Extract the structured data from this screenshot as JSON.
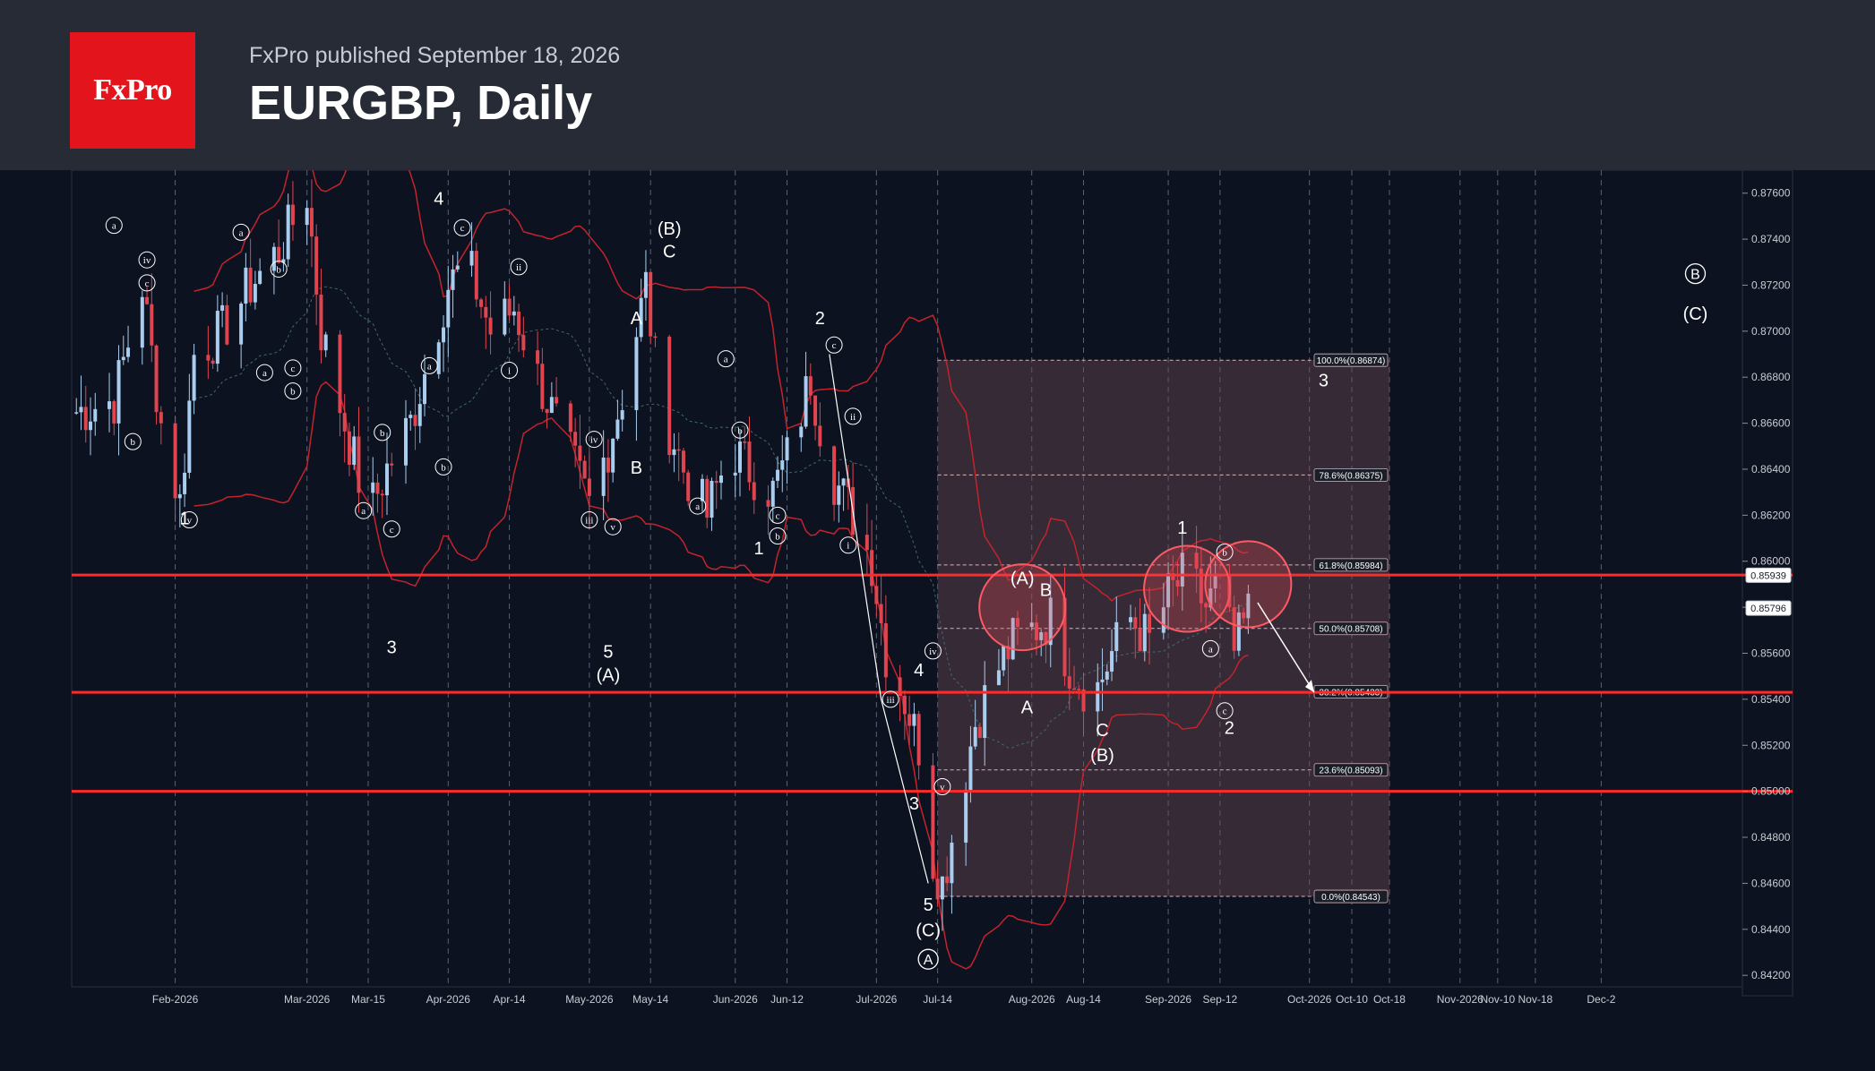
{
  "header": {
    "logo_text": "FxPro",
    "published": "FxPro published September 18, 2026",
    "title": "EURGBP, Daily"
  },
  "colors": {
    "background": "#0c1220",
    "header": "#262b36",
    "brand": "#e3141b",
    "bull_candle": "#a9cdee",
    "bear_candle": "#e0454f",
    "band": "#c4232b",
    "level_line": "#ff2b2b",
    "fib_zone": "#6b4a55"
  },
  "chart_data": {
    "type": "candlestick",
    "symbol": "EURGBP",
    "timeframe": "Daily",
    "ylim": [
      0.8415,
      0.877
    ],
    "y_ticks": [
      "0.84200",
      "0.84400",
      "0.84600",
      "0.84800",
      "0.85000",
      "0.85200",
      "0.85400",
      "0.85600",
      "0.85800",
      "0.86000",
      "0.86200",
      "0.86400",
      "0.86600",
      "0.86800",
      "0.87000",
      "0.87200",
      "0.87400",
      "0.87600"
    ],
    "x_ticks": [
      {
        "label": "Feb-2026",
        "x": "2026-02-02"
      },
      {
        "label": "Mar-2026",
        "x": "2026-03-02"
      },
      {
        "label": "Mar-15",
        "x": "2026-03-15"
      },
      {
        "label": "Apr-2026",
        "x": "2026-04-01"
      },
      {
        "label": "Apr-14",
        "x": "2026-04-14"
      },
      {
        "label": "May-2026",
        "x": "2026-05-01"
      },
      {
        "label": "May-14",
        "x": "2026-05-14"
      },
      {
        "label": "Jun-2026",
        "x": "2026-06-01"
      },
      {
        "label": "Jun-12",
        "x": "2026-06-12"
      },
      {
        "label": "Jul-2026",
        "x": "2026-07-01"
      },
      {
        "label": "Jul-14",
        "x": "2026-07-14"
      },
      {
        "label": "Aug-2026",
        "x": "2026-08-03"
      },
      {
        "label": "Aug-14",
        "x": "2026-08-14"
      },
      {
        "label": "Sep-2026",
        "x": "2026-09-01"
      },
      {
        "label": "Sep-12",
        "x": "2026-09-12"
      },
      {
        "label": "Oct-2026",
        "x": "2026-10-01"
      },
      {
        "label": "Oct-10",
        "x": "2026-10-10"
      },
      {
        "label": "Oct-18",
        "x": "2026-10-18"
      },
      {
        "label": "Nov-2026",
        "x": "2026-11-02"
      },
      {
        "label": "Nov-10",
        "x": "2026-11-10"
      },
      {
        "label": "Nov-18",
        "x": "2026-11-18"
      },
      {
        "label": "Dec-2",
        "x": "2026-12-02"
      }
    ],
    "close_path": [
      [
        "2026-01-12",
        0.8665
      ],
      [
        "2026-01-20",
        0.867
      ],
      [
        "2026-01-26",
        0.872
      ],
      [
        "2026-01-30",
        0.866
      ],
      [
        "2026-02-03",
        0.8625
      ],
      [
        "2026-02-06",
        0.869
      ],
      [
        "2026-02-12",
        0.87
      ],
      [
        "2026-02-18",
        0.872
      ],
      [
        "2026-02-24",
        0.8735
      ],
      [
        "2026-03-02",
        0.876
      ],
      [
        "2026-03-05",
        0.87
      ],
      [
        "2026-03-10",
        0.866
      ],
      [
        "2026-03-15",
        0.862
      ],
      [
        "2026-03-19",
        0.864
      ],
      [
        "2026-03-24",
        0.866
      ],
      [
        "2026-03-28",
        0.869
      ],
      [
        "2026-04-01",
        0.872
      ],
      [
        "2026-04-05",
        0.873
      ],
      [
        "2026-04-10",
        0.87
      ],
      [
        "2026-04-15",
        0.871
      ],
      [
        "2026-04-20",
        0.868
      ],
      [
        "2026-04-24",
        0.866
      ],
      [
        "2026-04-28",
        0.864
      ],
      [
        "2026-05-01",
        0.8625
      ],
      [
        "2026-05-05",
        0.865
      ],
      [
        "2026-05-09",
        0.868
      ],
      [
        "2026-05-13",
        0.872
      ],
      [
        "2026-05-16",
        0.867
      ],
      [
        "2026-05-21",
        0.864
      ],
      [
        "2026-05-26",
        0.862
      ],
      [
        "2026-05-31",
        0.865
      ],
      [
        "2026-06-04",
        0.864
      ],
      [
        "2026-06-09",
        0.863
      ],
      [
        "2026-06-13",
        0.865
      ],
      [
        "2026-06-17",
        0.868
      ],
      [
        "2026-06-21",
        0.864
      ],
      [
        "2026-06-26",
        0.862
      ],
      [
        "2026-06-30",
        0.86
      ],
      [
        "2026-07-03",
        0.856
      ],
      [
        "2026-07-07",
        0.854
      ],
      [
        "2026-07-10",
        0.852
      ],
      [
        "2026-07-13",
        0.847
      ],
      [
        "2026-07-15",
        0.846
      ],
      [
        "2026-07-18",
        0.849
      ],
      [
        "2026-07-22",
        0.853
      ],
      [
        "2026-07-26",
        0.855
      ],
      [
        "2026-07-30",
        0.8565
      ],
      [
        "2026-08-03",
        0.857
      ],
      [
        "2026-08-07",
        0.8575
      ],
      [
        "2026-08-11",
        0.8555
      ],
      [
        "2026-08-16",
        0.854
      ],
      [
        "2026-08-20",
        0.856
      ],
      [
        "2026-08-24",
        0.8575
      ],
      [
        "2026-08-28",
        0.8565
      ],
      [
        "2026-09-01",
        0.8585
      ],
      [
        "2026-09-05",
        0.8595
      ],
      [
        "2026-09-09",
        0.858
      ],
      [
        "2026-09-12",
        0.859
      ],
      [
        "2026-09-15",
        0.856
      ],
      [
        "2026-09-18",
        0.8578
      ]
    ],
    "horizontal_levels": [
      0.8594,
      0.8543,
      0.85
    ],
    "price_tags": [
      "0.85939",
      "0.85796"
    ],
    "fibonacci": {
      "x_start": "2026-07-14",
      "x_end": "2026-10-18",
      "levels": [
        {
          "label": "100.0%(0.86874)",
          "value": 0.86874
        },
        {
          "label": "78.6%(0.86375)",
          "value": 0.86375
        },
        {
          "label": "61.8%(0.85984)",
          "value": 0.85984
        },
        {
          "label": "50.0%(0.85708)",
          "value": 0.85708
        },
        {
          "label": "38.2%(0.85433)",
          "value": 0.85433
        },
        {
          "label": "23.6%(0.85093)",
          "value": 0.85093
        },
        {
          "label": "0.0%(0.84543)",
          "value": 0.84543
        }
      ]
    },
    "wave_labels": [
      {
        "text": "1",
        "x": "2026-02-04",
        "y": 0.8616
      },
      {
        "text": "3",
        "x": "2026-03-20",
        "y": 0.856
      },
      {
        "text": "4",
        "x": "2026-03-30",
        "y": 0.8755
      },
      {
        "text": "5",
        "x": "2026-05-05",
        "y": 0.8558
      },
      {
        "text": "(A)",
        "x": "2026-05-05",
        "y": 0.8548
      },
      {
        "text": "(B)",
        "x": "2026-05-18",
        "y": 0.8742
      },
      {
        "text": "C",
        "x": "2026-05-18",
        "y": 0.8732
      },
      {
        "text": "A",
        "x": "2026-05-11",
        "y": 0.8703
      },
      {
        "text": "B",
        "x": "2026-05-11",
        "y": 0.8638
      },
      {
        "text": "1",
        "x": "2026-06-06",
        "y": 0.8603
      },
      {
        "text": "2",
        "x": "2026-06-19",
        "y": 0.8703
      },
      {
        "text": "4",
        "x": "2026-07-10",
        "y": 0.855
      },
      {
        "text": "3",
        "x": "2026-07-09",
        "y": 0.8492
      },
      {
        "text": "5",
        "x": "2026-07-12",
        "y": 0.8448
      },
      {
        "text": "(C)",
        "x": "2026-07-12",
        "y": 0.8437
      },
      {
        "text": "A",
        "x": "2026-08-02",
        "y": 0.8534
      },
      {
        "text": "(A)",
        "x": "2026-08-01",
        "y": 0.859
      },
      {
        "text": "B",
        "x": "2026-08-06",
        "y": 0.8585
      },
      {
        "text": "C",
        "x": "2026-08-18",
        "y": 0.8524
      },
      {
        "text": "(B)",
        "x": "2026-08-18",
        "y": 0.8513
      },
      {
        "text": "1",
        "x": "2026-09-04",
        "y": 0.8612
      },
      {
        "text": "2",
        "x": "2026-09-14",
        "y": 0.8525
      },
      {
        "text": "3",
        "x": "2026-10-04",
        "y": 0.8676
      }
    ],
    "circled_labels": [
      {
        "text": "a",
        "x": "2026-01-20",
        "y": 0.8746
      },
      {
        "text": "iv",
        "x": "2026-01-27",
        "y": 0.8731
      },
      {
        "text": "c",
        "x": "2026-01-27",
        "y": 0.8721
      },
      {
        "text": "b",
        "x": "2026-01-24",
        "y": 0.8652
      },
      {
        "text": "v",
        "x": "2026-02-05",
        "y": 0.8618
      },
      {
        "text": "a",
        "x": "2026-02-16",
        "y": 0.8743
      },
      {
        "text": "b",
        "x": "2026-02-24",
        "y": 0.8727
      },
      {
        "text": "a",
        "x": "2026-02-21",
        "y": 0.8682
      },
      {
        "text": "c",
        "x": "2026-02-27",
        "y": 0.8684
      },
      {
        "text": "b",
        "x": "2026-02-27",
        "y": 0.8674
      },
      {
        "text": "b",
        "x": "2026-03-18",
        "y": 0.8656
      },
      {
        "text": "a",
        "x": "2026-03-14",
        "y": 0.8622
      },
      {
        "text": "c",
        "x": "2026-03-20",
        "y": 0.8614
      },
      {
        "text": "a",
        "x": "2026-03-28",
        "y": 0.8685
      },
      {
        "text": "b",
        "x": "2026-03-31",
        "y": 0.8641
      },
      {
        "text": "c",
        "x": "2026-04-04",
        "y": 0.8745
      },
      {
        "text": "ii",
        "x": "2026-04-16",
        "y": 0.8728
      },
      {
        "text": "i",
        "x": "2026-04-14",
        "y": 0.8683
      },
      {
        "text": "iv",
        "x": "2026-05-02",
        "y": 0.8653
      },
      {
        "text": "iii",
        "x": "2026-05-01",
        "y": 0.8618
      },
      {
        "text": "v",
        "x": "2026-05-06",
        "y": 0.8615
      },
      {
        "text": "a",
        "x": "2026-05-30",
        "y": 0.8688
      },
      {
        "text": "b",
        "x": "2026-06-02",
        "y": 0.8657
      },
      {
        "text": "a",
        "x": "2026-05-24",
        "y": 0.8624
      },
      {
        "text": "c",
        "x": "2026-06-10",
        "y": 0.862
      },
      {
        "text": "b",
        "x": "2026-06-10",
        "y": 0.8611
      },
      {
        "text": "c",
        "x": "2026-06-22",
        "y": 0.8694
      },
      {
        "text": "ii",
        "x": "2026-06-26",
        "y": 0.8663
      },
      {
        "text": "i",
        "x": "2026-06-25",
        "y": 0.8607
      },
      {
        "text": "iv",
        "x": "2026-07-13",
        "y": 0.8561
      },
      {
        "text": "iii",
        "x": "2026-07-04",
        "y": 0.854
      },
      {
        "text": "v",
        "x": "2026-07-15",
        "y": 0.8502
      },
      {
        "text": "b",
        "x": "2026-09-13",
        "y": 0.8604
      },
      {
        "text": "a",
        "x": "2026-09-10",
        "y": 0.8562
      },
      {
        "text": "c",
        "x": "2026-09-13",
        "y": 0.8535
      }
    ],
    "double_circled_labels": [
      {
        "text": "A",
        "x": "2026-07-12",
        "y": 0.8427
      },
      {
        "text": "B",
        "x": "2026-12-22",
        "y": 0.8725
      }
    ],
    "side_label": "(C)",
    "highlight_circles": [
      {
        "x": "2026-08-01",
        "y": 0.858
      },
      {
        "x": "2026-09-05",
        "y": 0.8588
      },
      {
        "x": "2026-09-18",
        "y": 0.859
      }
    ],
    "arrow": {
      "from": [
        "2026-09-20",
        0.8582
      ],
      "to": [
        "2026-10-02",
        0.8543
      ]
    },
    "legend": "none",
    "grid": true
  }
}
